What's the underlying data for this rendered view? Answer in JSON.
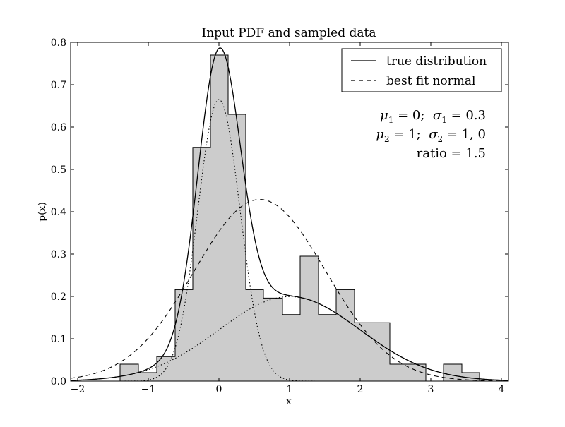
{
  "chart_data": {
    "type": "bar",
    "title": "Input PDF and sampled data",
    "xlabel": "x",
    "ylabel": "p(x)",
    "xlim": [
      -2.1,
      4.1
    ],
    "ylim": [
      0.0,
      0.8
    ],
    "x_ticks": [
      -2,
      -1,
      0,
      1,
      2,
      3,
      4
    ],
    "x_tick_labels": [
      "−2",
      "−1",
      "0",
      "1",
      "2",
      "3",
      "4"
    ],
    "y_ticks": [
      0.0,
      0.1,
      0.2,
      0.3,
      0.4,
      0.5,
      0.6,
      0.7,
      0.8
    ],
    "y_tick_labels": [
      "0.0",
      "0.1",
      "0.2",
      "0.3",
      "0.4",
      "0.5",
      "0.6",
      "0.7",
      "0.8"
    ],
    "histogram": {
      "bins": [
        {
          "x0": -1.4,
          "x1": -1.14,
          "y": 0.04
        },
        {
          "x0": -1.14,
          "x1": -0.88,
          "y": 0.02
        },
        {
          "x0": -0.88,
          "x1": -0.62,
          "y": 0.058
        },
        {
          "x0": -0.62,
          "x1": -0.37,
          "y": 0.216
        },
        {
          "x0": -0.37,
          "x1": -0.12,
          "y": 0.552
        },
        {
          "x0": -0.12,
          "x1": 0.13,
          "y": 0.77
        },
        {
          "x0": 0.13,
          "x1": 0.38,
          "y": 0.63
        },
        {
          "x0": 0.38,
          "x1": 0.63,
          "y": 0.216
        },
        {
          "x0": 0.63,
          "x1": 0.9,
          "y": 0.196
        },
        {
          "x0": 0.9,
          "x1": 1.15,
          "y": 0.157
        },
        {
          "x0": 1.15,
          "x1": 1.41,
          "y": 0.295
        },
        {
          "x0": 1.41,
          "x1": 1.66,
          "y": 0.157
        },
        {
          "x0": 1.66,
          "x1": 1.92,
          "y": 0.216
        },
        {
          "x0": 1.92,
          "x1": 2.42,
          "y": 0.138
        },
        {
          "x0": 2.42,
          "x1": 2.93,
          "y": 0.04
        },
        {
          "x0": 2.93,
          "x1": 3.18,
          "y": 0.0
        },
        {
          "x0": 3.18,
          "x1": 3.44,
          "y": 0.04
        },
        {
          "x0": 3.44,
          "x1": 3.69,
          "y": 0.02
        }
      ],
      "fill_color": "#cccccc",
      "edge_color": "#000000"
    },
    "series": [
      {
        "name": "true distribution",
        "style": "solid",
        "curve": "mixture"
      },
      {
        "name": "best fit normal",
        "style": "dashed",
        "curve": "normal",
        "mu": 0.58,
        "sigma": 0.93
      }
    ],
    "components": [
      {
        "style": "dotted",
        "mu": 0,
        "sigma": 0.3,
        "weight": 0.5
      },
      {
        "style": "dotted",
        "mu": 1,
        "sigma": 1.0,
        "weight": 0.5
      }
    ],
    "legend_position": "top-right",
    "grid": false,
    "annotations": {
      "line1": {
        "mu_sym": "μ",
        "mu_sub": "1",
        "mu_val": " = 0;  ",
        "sig_sym": "σ",
        "sig_sub": "1",
        "sig_val": " = 0.3"
      },
      "line2": {
        "mu_sym": "μ",
        "mu_sub": "2",
        "mu_val": " = 1;  ",
        "sig_sym": "σ",
        "sig_sub": "2",
        "sig_val": " = 1, 0"
      },
      "line3": "ratio = 1.5"
    }
  }
}
